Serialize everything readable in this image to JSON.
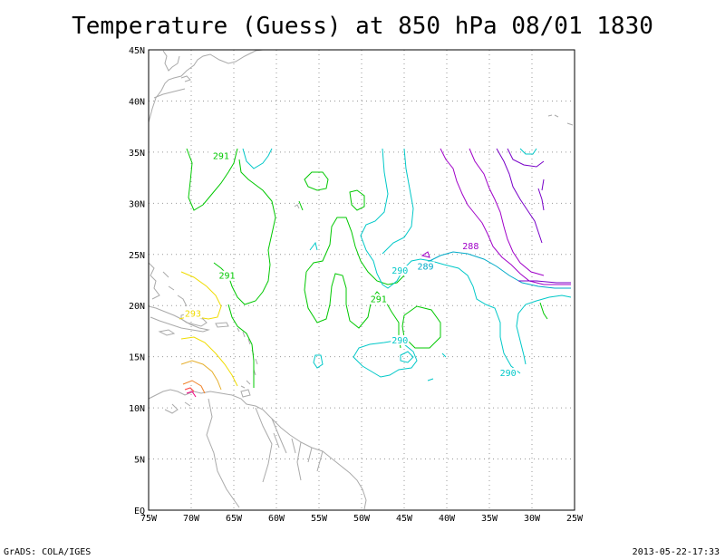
{
  "title": "Temperature (Guess) at 850 hPa 08/01 1830",
  "credit_left": "GrADS: COLA/IGES",
  "credit_right": "2013-05-22-17:33",
  "lon_range": [
    -75,
    -25
  ],
  "lat_range": [
    0,
    45
  ],
  "lat_ticks": [
    {
      "v": 45,
      "label": "45N"
    },
    {
      "v": 40,
      "label": "40N"
    },
    {
      "v": 35,
      "label": "35N"
    },
    {
      "v": 30,
      "label": "30N"
    },
    {
      "v": 25,
      "label": "25N"
    },
    {
      "v": 20,
      "label": "20N"
    },
    {
      "v": 15,
      "label": "15N"
    },
    {
      "v": 10,
      "label": "10N"
    },
    {
      "v": 5,
      "label": "5N"
    },
    {
      "v": 0,
      "label": "EQ"
    }
  ],
  "lon_ticks": [
    {
      "v": -75,
      "label": "75W"
    },
    {
      "v": -70,
      "label": "70W"
    },
    {
      "v": -65,
      "label": "65W"
    },
    {
      "v": -60,
      "label": "60W"
    },
    {
      "v": -55,
      "label": "55W"
    },
    {
      "v": -50,
      "label": "50W"
    },
    {
      "v": -45,
      "label": "45W"
    },
    {
      "v": -40,
      "label": "40W"
    },
    {
      "v": -35,
      "label": "35W"
    },
    {
      "v": -30,
      "label": "30W"
    },
    {
      "v": -25,
      "label": "25W"
    }
  ],
  "colors": {
    "c286": "#7800c8",
    "c288": "#a000c8",
    "c289": "#00aac8",
    "c290": "#00c8c8",
    "c291": "#00c800",
    "c293": "#f0dc00",
    "c294": "#e6af2d",
    "c296": "#f08228",
    "c297": "#fa3c3c",
    "c298": "#f00082",
    "coast": "#aaaaaa"
  },
  "contour_labels": [
    {
      "text": "291",
      "lon": -66.5,
      "lat": 34.4,
      "color": "c291"
    },
    {
      "text": "291",
      "lon": -65.8,
      "lat": 22.7,
      "color": "c291"
    },
    {
      "text": "291",
      "lon": -48.0,
      "lat": 20.4,
      "color": "c291"
    },
    {
      "text": "290",
      "lon": -45.5,
      "lat": 23.2,
      "color": "c290"
    },
    {
      "text": "289",
      "lon": -42.5,
      "lat": 23.6,
      "color": "c289"
    },
    {
      "text": "288",
      "lon": -37.2,
      "lat": 25.6,
      "color": "c288"
    },
    {
      "text": "290",
      "lon": -45.5,
      "lat": 16.4,
      "color": "c290"
    },
    {
      "text": "290",
      "lon": -32.8,
      "lat": 13.2,
      "color": "c290"
    },
    {
      "text": "293",
      "lon": -69.8,
      "lat": 19.0,
      "color": "c293"
    }
  ]
}
